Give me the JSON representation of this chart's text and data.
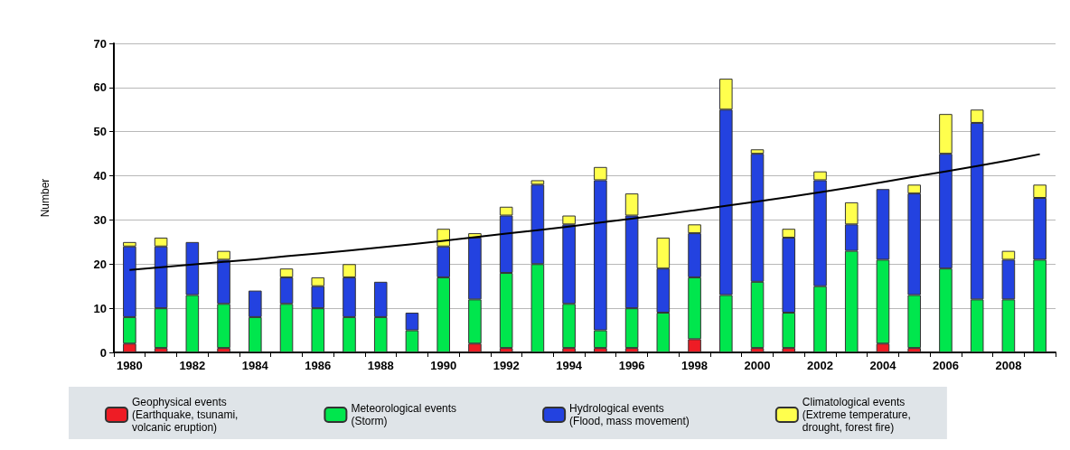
{
  "chart_data": {
    "type": "bar",
    "stacked": true,
    "ylabel": "Number",
    "categories": [
      "1980",
      null,
      "1982",
      null,
      "1984",
      null,
      "1986",
      null,
      "1988",
      null,
      "1990",
      null,
      "1992",
      null,
      "1994",
      null,
      "1996",
      null,
      "1998",
      null,
      "2000",
      null,
      "2002",
      null,
      "2004",
      null,
      "2006",
      null,
      "2008",
      null
    ],
    "series": [
      {
        "name": "Geophysical events\n(Earthquake, tsunami,\nvolcanic eruption)",
        "color": "#ee1c25",
        "values": [
          2,
          1,
          0,
          1,
          0,
          0,
          0,
          0,
          0,
          0,
          0,
          2,
          1,
          0,
          1,
          1,
          1,
          0,
          3,
          0,
          1,
          1,
          0,
          0,
          2,
          1,
          0,
          0,
          0,
          0
        ]
      },
      {
        "name": "Meteorological events\n(Storm)",
        "color": "#00e64d",
        "values": [
          6,
          9,
          13,
          10,
          8,
          11,
          10,
          8,
          8,
          5,
          17,
          10,
          17,
          20,
          10,
          4,
          9,
          9,
          14,
          13,
          15,
          8,
          15,
          23,
          19,
          12,
          19,
          12,
          12,
          21
        ]
      },
      {
        "name": "Hydrological events\n(Flood, mass movement)",
        "color": "#2342e0",
        "values": [
          16,
          14,
          12,
          10,
          6,
          6,
          5,
          9,
          8,
          4,
          7,
          14,
          13,
          18,
          18,
          34,
          21,
          10,
          10,
          42,
          29,
          17,
          24,
          6,
          16,
          23,
          26,
          40,
          9,
          14
        ]
      },
      {
        "name": "Climatological events\n(Extreme temperature,\ndrought, forest fire)",
        "color": "#ffff4d",
        "values": [
          1,
          2,
          0,
          2,
          0,
          2,
          2,
          3,
          0,
          0,
          4,
          1,
          2,
          1,
          2,
          3,
          5,
          7,
          2,
          7,
          1,
          2,
          2,
          5,
          0,
          2,
          9,
          3,
          2,
          3
        ]
      },
      {
        "type": "line",
        "color": "#000000",
        "values": [
          18.7,
          19.3,
          19.9,
          20.5,
          21.1,
          21.8,
          22.4,
          23.1,
          23.8,
          24.5,
          25.3,
          26.1,
          26.9,
          27.7,
          28.5,
          29.4,
          30.3,
          31.2,
          32.2,
          33.2,
          34.2,
          35.2,
          36.3,
          37.4,
          38.6,
          39.8,
          41.0,
          42.2,
          43.5,
          44.9
        ]
      }
    ],
    "ylim": [
      0,
      70
    ],
    "yticks": [
      0,
      10,
      20,
      30,
      40,
      50,
      60,
      70
    ],
    "grid": "y",
    "legend": "bottom",
    "marker": "none"
  }
}
